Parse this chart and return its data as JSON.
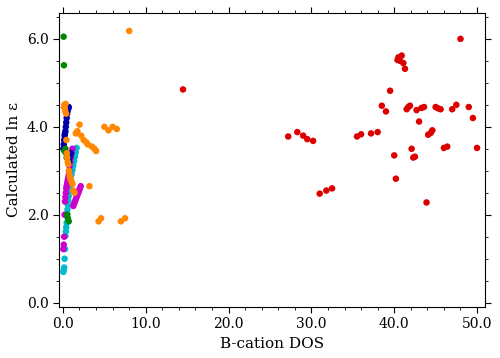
{
  "xlabel": "B-cation DOS",
  "ylabel": "Calculated ln ε",
  "xlim": [
    -0.5,
    51
  ],
  "ylim": [
    -0.1,
    6.6
  ],
  "xticks": [
    0.0,
    10.0,
    20.0,
    30.0,
    40.0,
    50.0
  ],
  "yticks": [
    0.0,
    2.0,
    4.0,
    6.0
  ],
  "marker_size": 22,
  "colors": {
    "Ti": "#dd0000",
    "Zr": "#ff8800",
    "Hf": "#008800",
    "Si": "#0000aa",
    "Ge": "#cc00cc",
    "Sn": "#00bbcc"
  },
  "Ti_data": {
    "x": [
      14.5,
      27.2,
      28.3,
      29.0,
      29.5,
      30.2,
      31.0,
      31.8,
      32.5,
      35.5,
      36.0,
      37.2,
      38.0,
      38.5,
      39.0,
      39.5,
      40.0,
      40.2,
      40.4,
      40.5,
      40.7,
      40.9,
      41.1,
      41.3,
      41.5,
      41.7,
      41.9,
      42.1,
      42.3,
      42.5,
      42.7,
      43.0,
      43.3,
      43.6,
      43.9,
      44.1,
      44.4,
      44.6,
      45.0,
      45.3,
      45.6,
      46.0,
      46.4,
      47.0,
      47.5,
      48.0,
      49.0,
      49.5,
      50.0
    ],
    "y": [
      4.85,
      3.78,
      3.88,
      3.8,
      3.72,
      3.68,
      2.48,
      2.55,
      2.6,
      3.78,
      3.83,
      3.85,
      3.88,
      4.48,
      4.35,
      4.82,
      3.35,
      2.82,
      5.52,
      5.58,
      5.5,
      5.62,
      5.45,
      5.32,
      4.4,
      4.45,
      4.48,
      3.5,
      3.3,
      3.32,
      4.38,
      4.12,
      4.43,
      4.45,
      2.28,
      3.82,
      3.86,
      3.92,
      4.45,
      4.42,
      4.4,
      3.52,
      3.55,
      4.4,
      4.5,
      6.0,
      4.45,
      4.2,
      3.52
    ]
  },
  "Zr_data": {
    "x": [
      0.12,
      0.18,
      0.22,
      0.28,
      0.32,
      0.38,
      0.42,
      0.48,
      0.52,
      0.58,
      0.65,
      0.72,
      0.8,
      0.88,
      0.95,
      1.05,
      1.15,
      1.25,
      1.4,
      1.55,
      1.75,
      2.0,
      2.2,
      2.5,
      2.8,
      3.0,
      3.2,
      3.5,
      3.8,
      4.0,
      4.3,
      4.6,
      5.0,
      5.5,
      6.0,
      6.5,
      7.0,
      7.5,
      8.0
    ],
    "y": [
      4.45,
      4.5,
      4.42,
      4.35,
      4.52,
      4.3,
      3.7,
      3.4,
      3.3,
      3.2,
      3.15,
      3.0,
      2.9,
      2.85,
      2.8,
      2.75,
      2.7,
      2.55,
      2.5,
      3.85,
      3.9,
      4.05,
      3.8,
      3.7,
      3.65,
      3.6,
      2.65,
      3.55,
      3.5,
      3.45,
      1.85,
      1.92,
      4.0,
      3.92,
      4.0,
      3.95,
      1.85,
      1.92,
      6.18
    ]
  },
  "Hf_data": {
    "x": [
      0.08,
      0.12,
      0.18,
      0.24,
      0.3,
      0.38,
      0.45,
      0.52,
      0.6,
      0.7
    ],
    "y": [
      6.05,
      5.4,
      3.45,
      4.5,
      3.5,
      3.4,
      3.3,
      2.0,
      1.92,
      1.85
    ]
  },
  "Si_data": {
    "x": [
      0.05,
      0.1,
      0.15,
      0.2,
      0.25,
      0.3,
      0.35,
      0.4,
      0.45,
      0.5,
      0.55,
      0.6,
      0.65,
      0.7,
      0.75,
      0.8,
      0.88,
      0.95
    ],
    "y": [
      3.5,
      3.6,
      3.7,
      3.8,
      3.85,
      3.9,
      4.0,
      4.1,
      4.2,
      4.3,
      4.35,
      4.4,
      4.42,
      4.45,
      3.2,
      3.3,
      3.35,
      3.4
    ]
  },
  "Ge_data": {
    "x": [
      0.05,
      0.1,
      0.15,
      0.2,
      0.25,
      0.3,
      0.35,
      0.4,
      0.45,
      0.5,
      0.55,
      0.6,
      0.65,
      0.7,
      0.75,
      0.8,
      0.88,
      0.95,
      1.05,
      1.15,
      1.25,
      1.35,
      1.45,
      1.55,
      1.65,
      1.75,
      1.85,
      1.95,
      2.05,
      2.15
    ],
    "y": [
      1.22,
      1.32,
      1.5,
      2.0,
      2.3,
      2.4,
      2.5,
      2.6,
      2.65,
      2.7,
      2.75,
      2.8,
      2.85,
      2.9,
      3.0,
      3.1,
      3.2,
      3.3,
      3.4,
      3.5,
      2.2,
      2.25,
      2.3,
      2.35,
      2.4,
      2.45,
      2.5,
      2.55,
      2.6,
      2.65
    ]
  },
  "Sn_data": {
    "x": [
      0.05,
      0.1,
      0.15,
      0.2,
      0.25,
      0.3,
      0.35,
      0.4,
      0.45,
      0.5,
      0.55,
      0.6,
      0.65,
      0.7,
      0.75,
      0.8,
      0.88,
      0.95,
      1.05,
      1.15,
      1.25,
      1.35,
      1.45,
      1.55,
      1.65
    ],
    "y": [
      0.7,
      0.75,
      0.8,
      1.0,
      1.22,
      1.52,
      1.62,
      1.72,
      1.82,
      2.02,
      2.12,
      2.22,
      2.32,
      2.42,
      2.52,
      2.62,
      2.72,
      2.82,
      2.92,
      3.02,
      3.12,
      3.22,
      3.32,
      3.42,
      3.52
    ]
  }
}
